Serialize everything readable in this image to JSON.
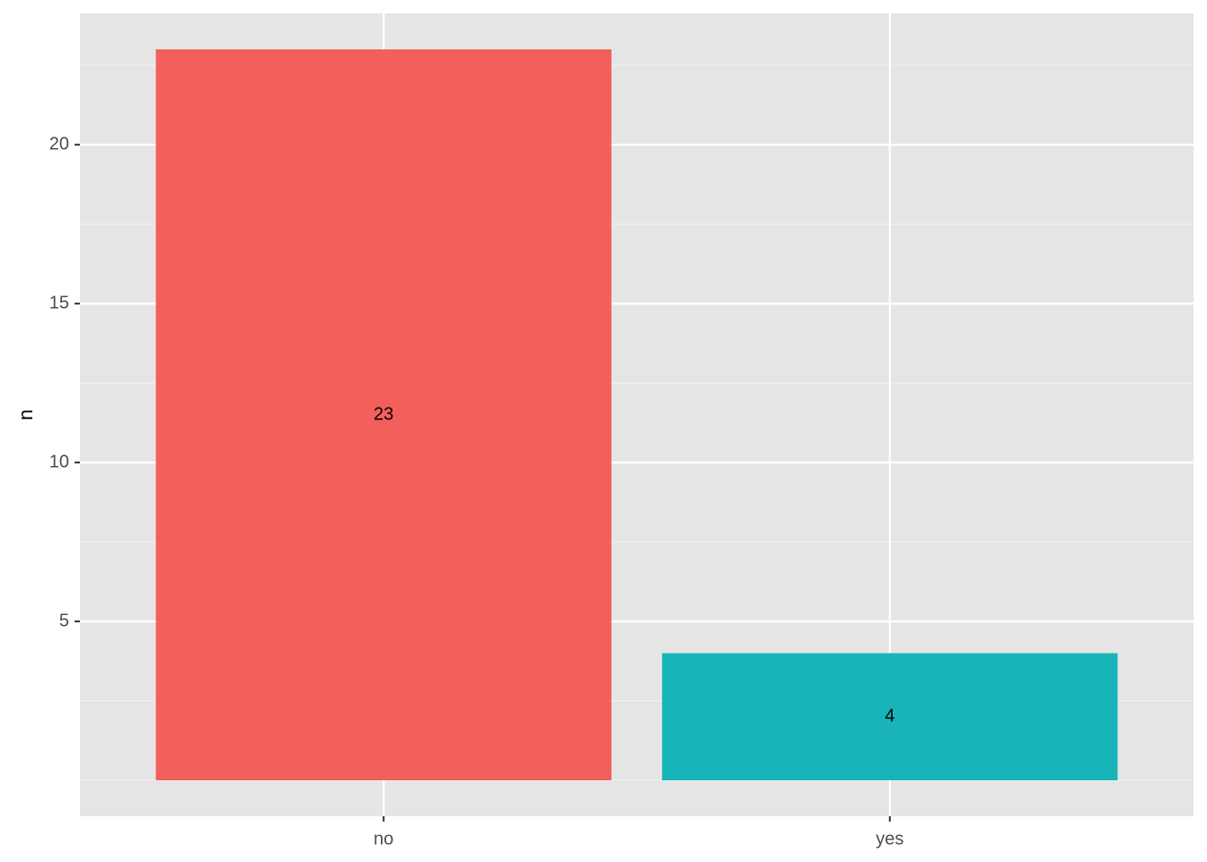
{
  "chart_data": {
    "type": "bar",
    "y_label": "n",
    "categories": [
      "no",
      "yes"
    ],
    "values": [
      23,
      4
    ],
    "colors": [
      "#f35f5a",
      "#19b4b9"
    ],
    "ylim": [
      -1.13,
      24.13
    ],
    "yticks": [
      5,
      10,
      15,
      20
    ],
    "yminor_ticks": [
      0,
      2.5,
      7.5,
      12.5,
      17.5,
      22.5
    ],
    "grid": true
  }
}
